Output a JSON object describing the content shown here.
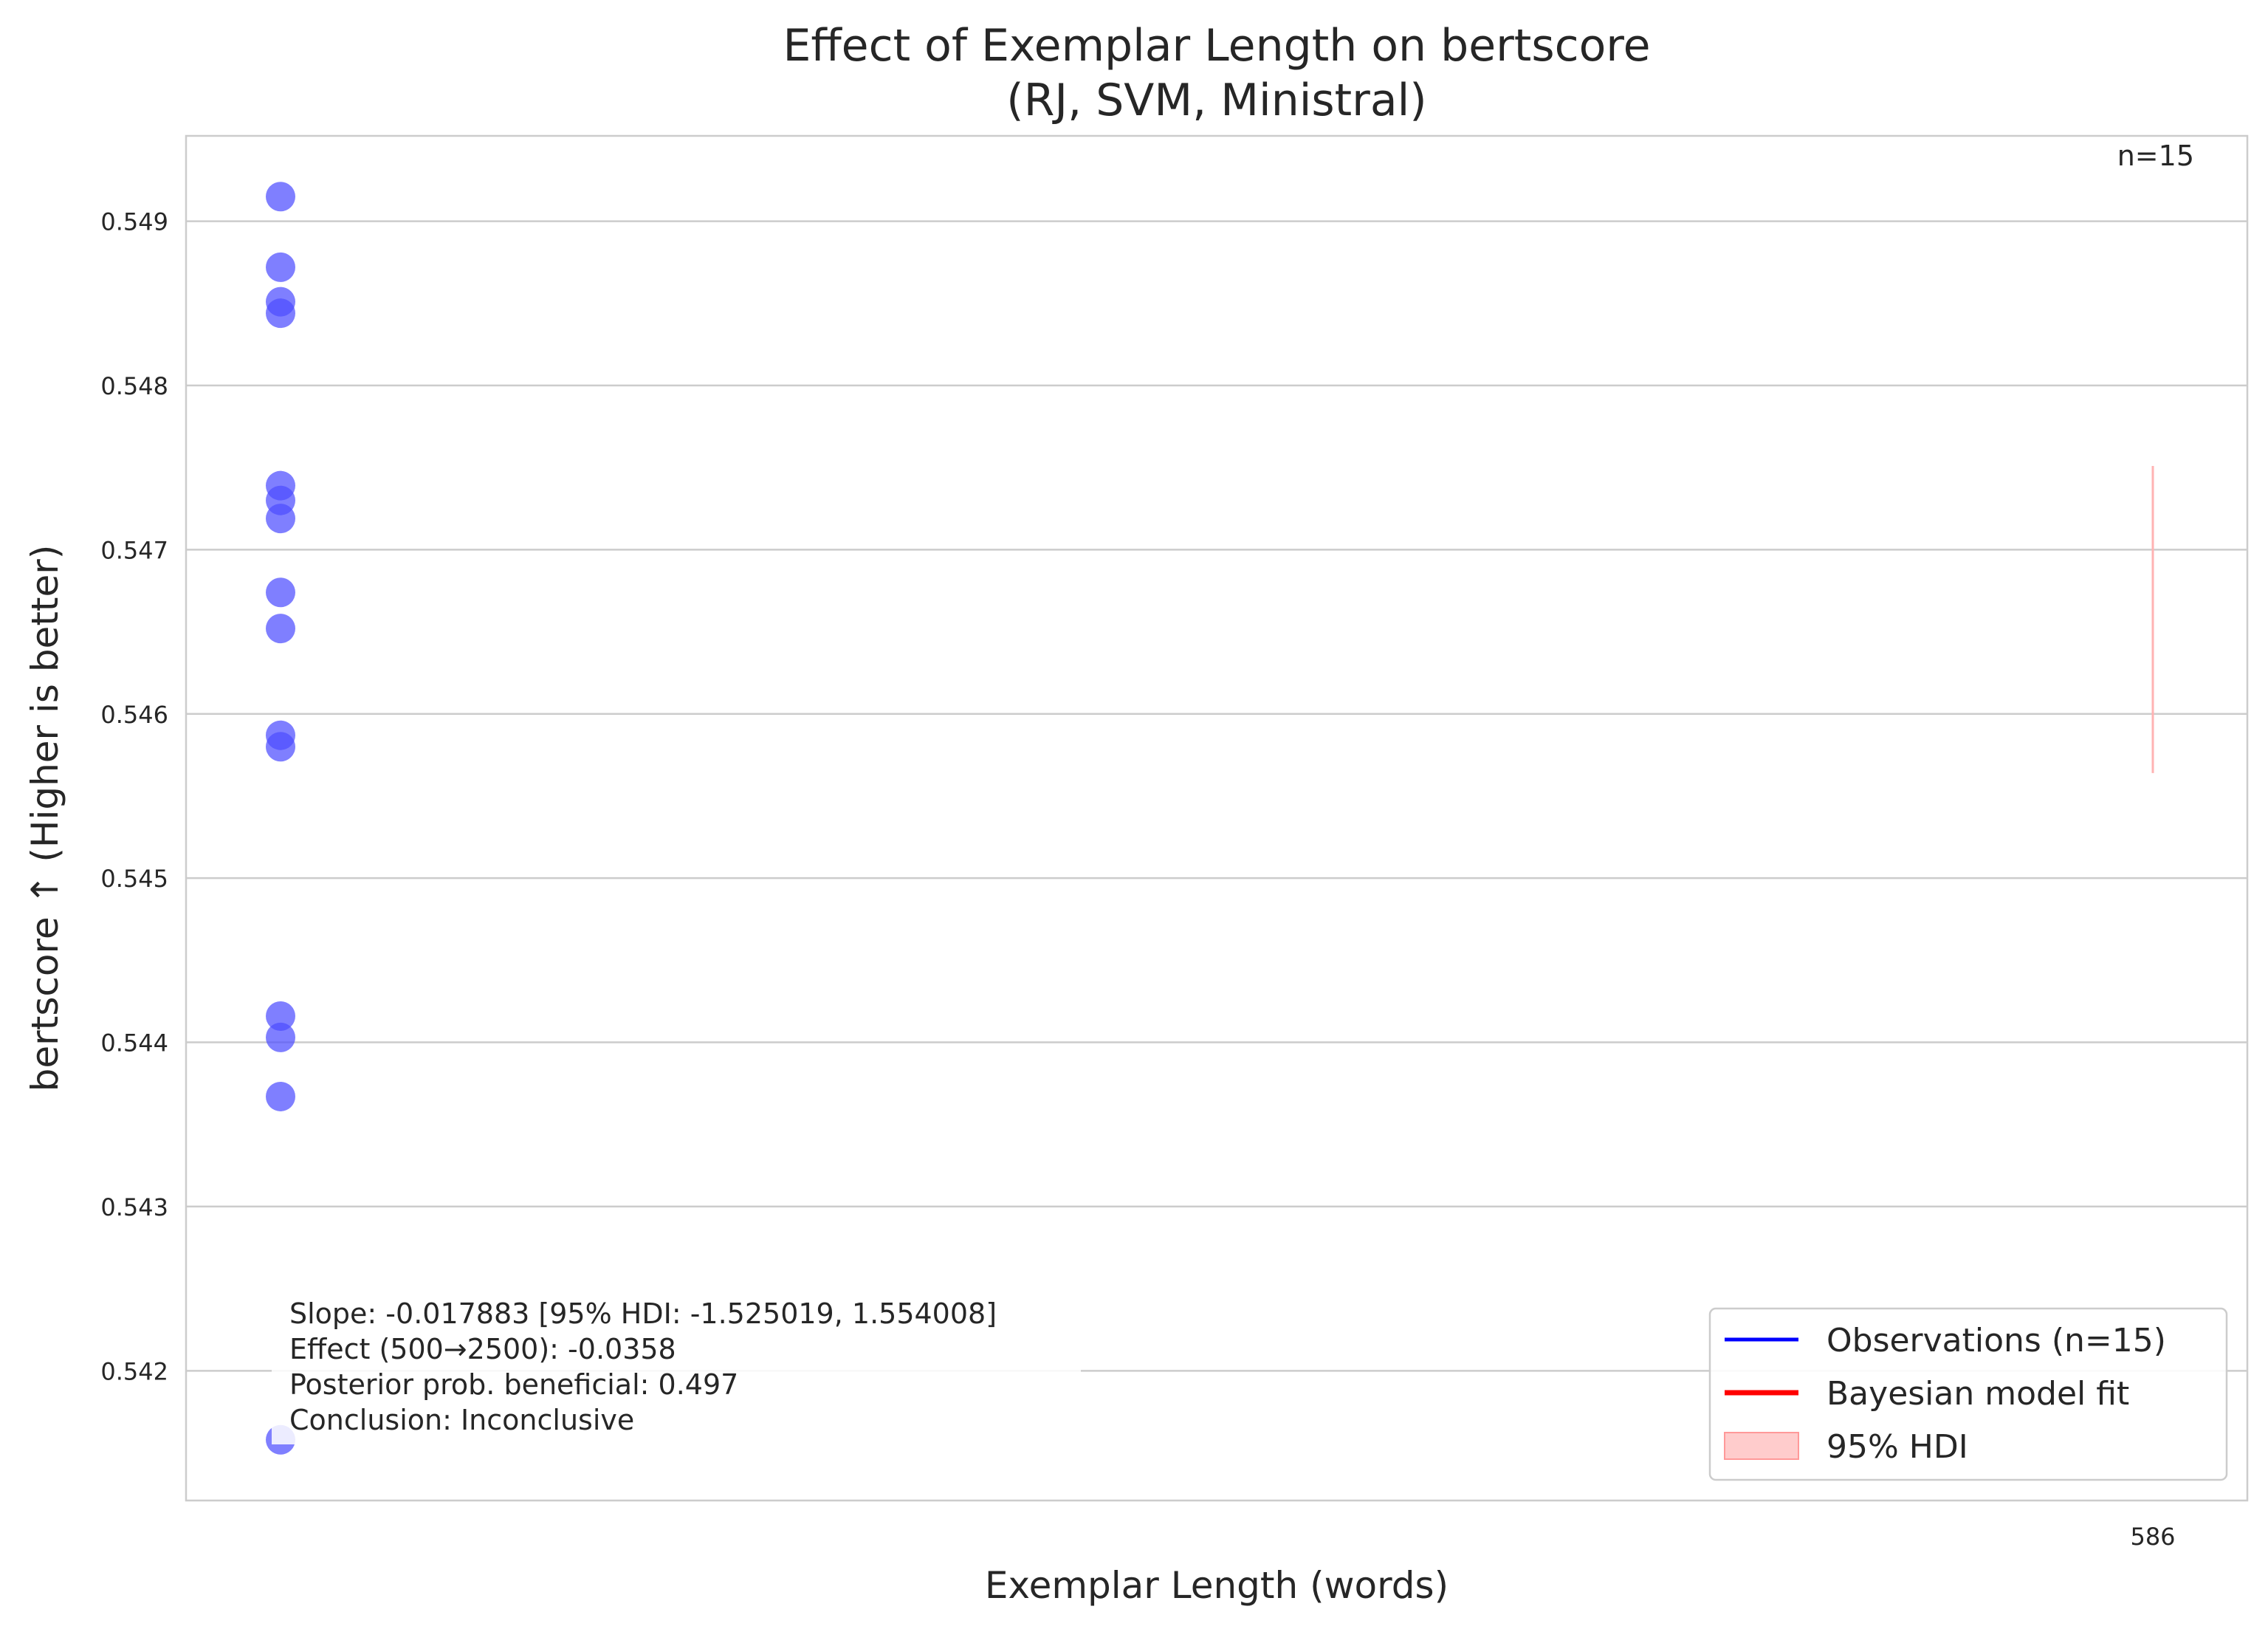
{
  "chart_data": {
    "type": "scatter",
    "title": "Effect of Exemplar Length on bertscore",
    "subtitle": "(RJ, SVM, Ministral)",
    "xlabel": "Exemplar Length (words)",
    "ylabel": "bertscore ↑ (Higher is better)",
    "x_ticks": [
      586
    ],
    "y_ticks": [
      0.542,
      0.543,
      0.544,
      0.545,
      0.546,
      0.547,
      0.548,
      0.549
    ],
    "ylim": [
      0.54121,
      0.54952
    ],
    "grid": true,
    "n_label": "n=15",
    "points_color": "#4d4dff",
    "hdi_color": "#ffb3b3",
    "series": [
      {
        "name": "Observations (n=15)",
        "points": [
          {
            "x": 586,
            "y": 0.54915
          },
          {
            "x": 586,
            "y": 0.54872
          },
          {
            "x": 586,
            "y": 0.54851
          },
          {
            "x": 586,
            "y": 0.54844
          },
          {
            "x": 586,
            "y": 0.54739
          },
          {
            "x": 586,
            "y": 0.5473
          },
          {
            "x": 586,
            "y": 0.54719
          },
          {
            "x": 586,
            "y": 0.54674
          },
          {
            "x": 586,
            "y": 0.54652
          },
          {
            "x": 586,
            "y": 0.54587
          },
          {
            "x": 586,
            "y": 0.5458
          },
          {
            "x": 586,
            "y": 0.54416
          },
          {
            "x": 586,
            "y": 0.54403
          },
          {
            "x": 586,
            "y": 0.54367
          },
          {
            "x": 586,
            "y": 0.54158
          }
        ]
      }
    ],
    "hdi": {
      "x": 586,
      "low": 0.54564,
      "high": 0.54751
    },
    "legend": {
      "placement": "lower-right",
      "entries": [
        {
          "label": "Observations (n=15)",
          "color": "#0000ff",
          "kind": "line"
        },
        {
          "label": "Bayesian model fit",
          "color": "#ff0000",
          "kind": "line"
        },
        {
          "label": "95% HDI",
          "color": "#ffcccc",
          "kind": "patch"
        }
      ]
    },
    "stats_box": {
      "lines": [
        "Slope: -0.017883 [95% HDI: -1.525019, 1.554008]",
        "Effect (500→2500): -0.0358",
        "Posterior prob. beneficial: 0.497",
        "Conclusion: Inconclusive"
      ]
    }
  }
}
